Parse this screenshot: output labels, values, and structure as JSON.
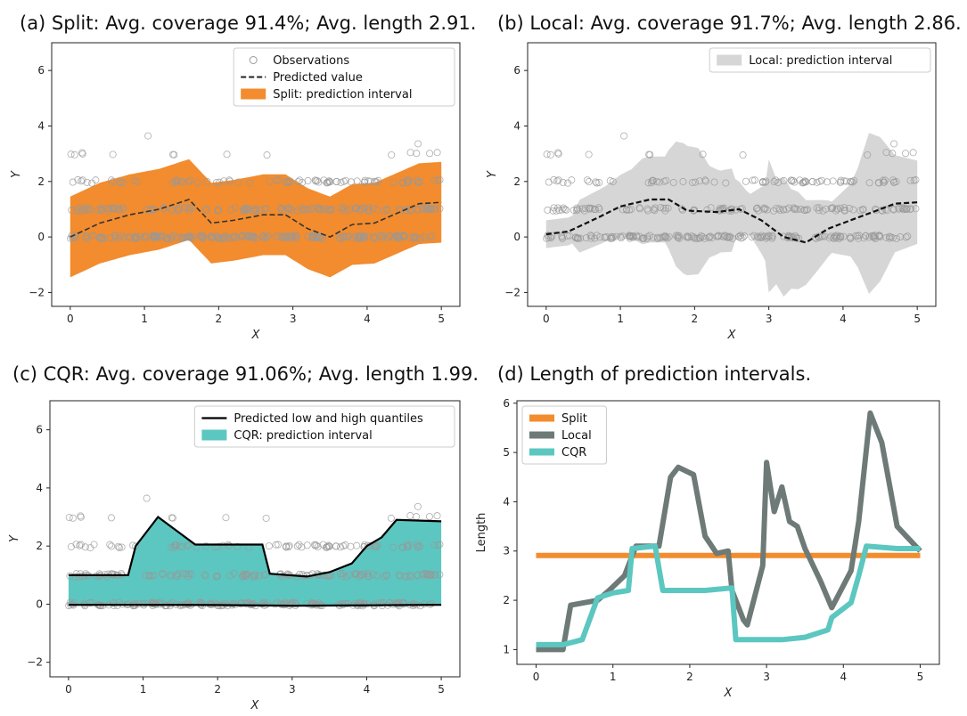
{
  "chart_data": [
    {
      "id": "a",
      "type": "scatter",
      "title": "(a) Split: Avg. coverage 91.4%; Avg. length 2.91.",
      "xlabel": "X",
      "ylabel": "Y",
      "xlim": [
        -0.25,
        5.25
      ],
      "ylim": [
        -2.5,
        7
      ],
      "xticks": [
        0,
        1,
        2,
        3,
        4,
        5
      ],
      "yticks": [
        -2,
        0,
        2,
        4,
        6
      ],
      "legend_position": "top-right",
      "legend": [
        {
          "label": "Observations",
          "kind": "marker",
          "color": "#999999"
        },
        {
          "label": "Predicted value",
          "kind": "dashed-line",
          "color": "#222222"
        },
        {
          "label": "Split: prediction interval",
          "kind": "patch",
          "color": "#f28c2e"
        }
      ],
      "predicted": {
        "x": [
          0,
          0.4,
          0.8,
          1.2,
          1.6,
          1.9,
          2.2,
          2.6,
          2.9,
          3.2,
          3.5,
          3.8,
          4.1,
          4.4,
          4.7,
          5
        ],
        "y": [
          0.0,
          0.5,
          0.8,
          1.0,
          1.35,
          0.5,
          0.6,
          0.8,
          0.8,
          0.3,
          0.0,
          0.45,
          0.5,
          0.85,
          1.2,
          1.25
        ]
      },
      "band_width": 2.91,
      "band_color": "#f28c2e"
    },
    {
      "id": "b",
      "type": "scatter",
      "title": "(b) Local: Avg. coverage 91.7%; Avg. length 2.86.",
      "xlabel": "X",
      "ylabel": "Y",
      "xlim": [
        -0.25,
        5.25
      ],
      "ylim": [
        -2.5,
        7
      ],
      "xticks": [
        0,
        1,
        2,
        3,
        4,
        5
      ],
      "yticks": [
        -2,
        0,
        2,
        4,
        6
      ],
      "legend_position": "top-right",
      "legend": [
        {
          "label": "Local: prediction interval",
          "kind": "patch",
          "color": "#d6d6d6"
        }
      ],
      "predicted": {
        "x": [
          0,
          0.3,
          0.7,
          1.0,
          1.4,
          1.65,
          1.9,
          2.3,
          2.6,
          2.9,
          3.2,
          3.5,
          3.8,
          4.1,
          4.4,
          4.7,
          5
        ],
        "y": [
          0.1,
          0.2,
          0.7,
          1.1,
          1.35,
          1.35,
          0.95,
          0.9,
          1.0,
          0.6,
          0.0,
          -0.2,
          0.3,
          0.6,
          0.9,
          1.2,
          1.25
        ]
      },
      "band_color": "#d6d6d6"
    },
    {
      "id": "c",
      "type": "scatter",
      "title": "(c) CQR: Avg. coverage 91.06%; Avg. length 1.99.",
      "xlabel": "X",
      "ylabel": "Y",
      "xlim": [
        -0.25,
        5.25
      ],
      "ylim": [
        -2.5,
        7
      ],
      "xticks": [
        0,
        1,
        2,
        3,
        4,
        5
      ],
      "yticks": [
        -2,
        0,
        2,
        4,
        6
      ],
      "legend_position": "top-right",
      "legend": [
        {
          "label": "Predicted low and high quantiles",
          "kind": "line",
          "color": "#000000"
        },
        {
          "label": "CQR: prediction interval",
          "kind": "patch",
          "color": "#5bc7c0"
        }
      ],
      "upper": {
        "x": [
          0,
          0.8,
          0.9,
          1.2,
          1.7,
          2.6,
          2.7,
          3.2,
          3.5,
          3.8,
          4.0,
          4.2,
          4.4,
          5
        ],
        "y": [
          1.0,
          1.0,
          2.0,
          3.0,
          2.05,
          2.05,
          1.05,
          0.95,
          1.1,
          1.4,
          2.0,
          2.3,
          2.9,
          2.85
        ]
      },
      "lower": {
        "x": [
          0,
          1,
          2,
          3,
          4,
          5
        ],
        "y": [
          -0.02,
          -0.02,
          -0.03,
          -0.05,
          -0.04,
          -0.02
        ]
      },
      "band_color": "#5bc7c0"
    },
    {
      "id": "d",
      "type": "line",
      "title": "(d) Length of prediction intervals.",
      "xlabel": "X",
      "ylabel": "Length",
      "xlim": [
        -0.25,
        5.25
      ],
      "ylim": [
        0.7,
        6.05
      ],
      "xticks": [
        0,
        1,
        2,
        3,
        4,
        5
      ],
      "yticks": [
        1,
        2,
        3,
        4,
        5,
        6
      ],
      "legend_position": "top-left",
      "series": [
        {
          "name": "Split",
          "color": "#f28c2e",
          "x": [
            0,
            5
          ],
          "y": [
            2.91,
            2.91
          ]
        },
        {
          "name": "Local",
          "color": "#6e7a77",
          "x": [
            0,
            0.35,
            0.45,
            0.8,
            0.95,
            1.15,
            1.3,
            1.6,
            1.75,
            1.85,
            2.05,
            2.2,
            2.35,
            2.5,
            2.55,
            2.7,
            2.75,
            2.95,
            3.0,
            3.1,
            3.2,
            3.3,
            3.4,
            3.5,
            3.7,
            3.85,
            4.0,
            4.1,
            4.2,
            4.35,
            4.5,
            4.7,
            5.0
          ],
          "y": [
            1.0,
            1.0,
            1.9,
            2.0,
            2.2,
            2.5,
            3.1,
            3.1,
            4.5,
            4.7,
            4.55,
            3.3,
            2.95,
            3.0,
            2.2,
            1.6,
            1.5,
            2.7,
            4.8,
            3.8,
            4.3,
            3.6,
            3.5,
            3.05,
            2.4,
            1.85,
            2.3,
            2.6,
            3.6,
            5.8,
            5.2,
            3.5,
            3.0
          ]
        },
        {
          "name": "CQR",
          "color": "#5bc7c0",
          "x": [
            0,
            0.35,
            0.6,
            0.8,
            1.0,
            1.2,
            1.25,
            1.55,
            1.65,
            2.2,
            2.55,
            2.6,
            3.2,
            3.5,
            3.8,
            3.85,
            4.1,
            4.2,
            4.3,
            4.7,
            5.0
          ],
          "y": [
            1.1,
            1.1,
            1.2,
            2.05,
            2.15,
            2.2,
            3.05,
            3.1,
            2.2,
            2.2,
            2.25,
            1.2,
            1.2,
            1.25,
            1.4,
            1.65,
            1.95,
            2.5,
            3.1,
            3.05,
            3.05
          ]
        }
      ]
    }
  ],
  "observations_color": "#999999"
}
